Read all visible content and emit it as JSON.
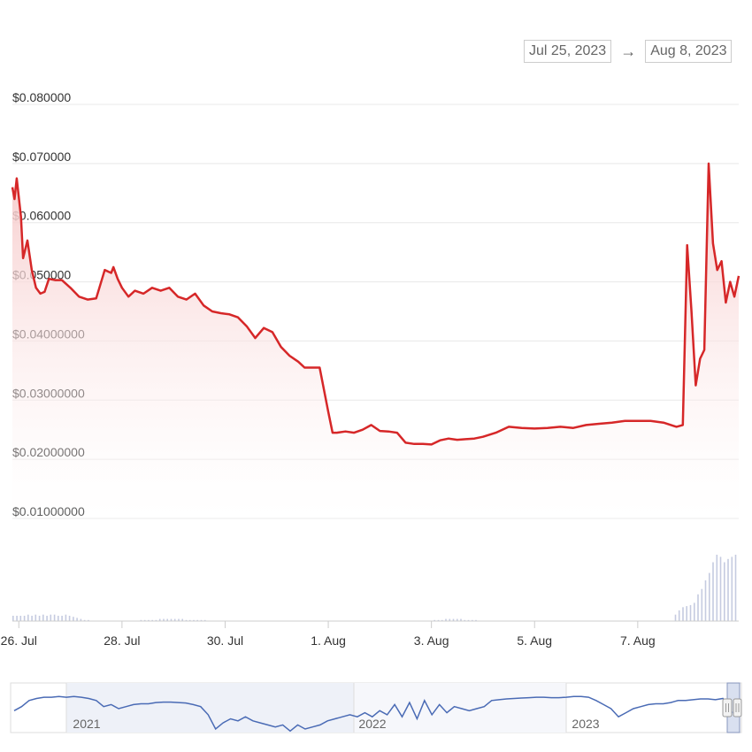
{
  "range_selector": {
    "from": "Jul 25, 2023",
    "arrow": "→",
    "to": "Aug 8, 2023"
  },
  "colors": {
    "price_line": "#d62728",
    "fill_top": "#f6c7c7",
    "navigator_line": "#4a6bb5",
    "volume": "#c5cbe0",
    "grid": "#e8e8e8"
  },
  "chart_data": {
    "type": "line",
    "title": "",
    "xlabel": "",
    "ylabel": "",
    "y_axis": {
      "min": 0.01,
      "max": 0.08,
      "tick_values": [
        0.08,
        0.07,
        0.06,
        0.05,
        0.04,
        0.03,
        0.02,
        0.01
      ],
      "tick_labels": [
        "$0.080000",
        "$0.070000",
        "$0.060000",
        "$0.050000",
        "$0.04000000",
        "$0.03000000",
        "$0.02000000",
        "$0.01000000"
      ]
    },
    "x_axis": {
      "start": "2023-07-25T21:00",
      "end": "2023-08-08T23:00",
      "tick_labels": [
        "26. Jul",
        "28. Jul",
        "30. Jul",
        "1. Aug",
        "3. Aug",
        "5. Aug",
        "7. Aug"
      ],
      "tick_dates": [
        "2023-07-26",
        "2023-07-28",
        "2023-07-30",
        "2023-08-01",
        "2023-08-03",
        "2023-08-05",
        "2023-08-07"
      ]
    },
    "grid": true,
    "series": [
      {
        "x": [
          "2023-07-25T21:00",
          "2023-07-25T22:00",
          "2023-07-25T23:00",
          "2023-07-26T01:00",
          "2023-07-26T02:00",
          "2023-07-26T04:00",
          "2023-07-26T06:00",
          "2023-07-26T08:00",
          "2023-07-26T10:00",
          "2023-07-26T12:00",
          "2023-07-26T14:00",
          "2023-07-26T17:00",
          "2023-07-26T20:00",
          "2023-07-27T00:00",
          "2023-07-27T04:00",
          "2023-07-27T08:00",
          "2023-07-27T12:00",
          "2023-07-27T16:00",
          "2023-07-27T19:00",
          "2023-07-27T20:00",
          "2023-07-27T22:00",
          "2023-07-28T00:00",
          "2023-07-28T03:00",
          "2023-07-28T06:00",
          "2023-07-28T10:00",
          "2023-07-28T14:00",
          "2023-07-28T18:00",
          "2023-07-28T22:00",
          "2023-07-29T02:00",
          "2023-07-29T06:00",
          "2023-07-29T10:00",
          "2023-07-29T14:00",
          "2023-07-29T18:00",
          "2023-07-29T22:00",
          "2023-07-30T02:00",
          "2023-07-30T06:00",
          "2023-07-30T10:00",
          "2023-07-30T14:00",
          "2023-07-30T18:00",
          "2023-07-30T22:00",
          "2023-07-31T02:00",
          "2023-07-31T06:00",
          "2023-07-31T10:00",
          "2023-07-31T13:00",
          "2023-07-31T15:00",
          "2023-07-31T20:00",
          "2023-08-01T00:00",
          "2023-08-01T02:00",
          "2023-08-01T04:00",
          "2023-08-01T08:00",
          "2023-08-01T12:00",
          "2023-08-01T16:00",
          "2023-08-01T20:00",
          "2023-08-02T00:00",
          "2023-08-02T04:00",
          "2023-08-02T08:00",
          "2023-08-02T12:00",
          "2023-08-02T16:00",
          "2023-08-02T20:00",
          "2023-08-03T00:00",
          "2023-08-03T04:00",
          "2023-08-03T08:00",
          "2023-08-03T12:00",
          "2023-08-03T16:00",
          "2023-08-03T20:00",
          "2023-08-04T00:00",
          "2023-08-04T06:00",
          "2023-08-04T12:00",
          "2023-08-04T18:00",
          "2023-08-05T00:00",
          "2023-08-05T06:00",
          "2023-08-05T12:00",
          "2023-08-05T18:00",
          "2023-08-06T00:00",
          "2023-08-06T06:00",
          "2023-08-06T12:00",
          "2023-08-06T18:00",
          "2023-08-07T00:00",
          "2023-08-07T06:00",
          "2023-08-07T12:00",
          "2023-08-07T18:00",
          "2023-08-07T21:00",
          "2023-08-07T23:00",
          "2023-08-08T01:00",
          "2023-08-08T03:00",
          "2023-08-08T05:00",
          "2023-08-08T07:00",
          "2023-08-08T09:00",
          "2023-08-08T11:00",
          "2023-08-08T13:00",
          "2023-08-08T15:00",
          "2023-08-08T17:00",
          "2023-08-08T19:00",
          "2023-08-08T21:00",
          "2023-08-08T23:00"
        ],
        "y": [
          0.066,
          0.064,
          0.0675,
          0.061,
          0.054,
          0.057,
          0.052,
          0.049,
          0.048,
          0.0483,
          0.0505,
          0.0503,
          0.0503,
          0.049,
          0.0475,
          0.047,
          0.0472,
          0.052,
          0.0515,
          0.0525,
          0.0505,
          0.049,
          0.0475,
          0.0485,
          0.048,
          0.049,
          0.0485,
          0.049,
          0.0475,
          0.047,
          0.048,
          0.046,
          0.045,
          0.0447,
          0.0445,
          0.044,
          0.0425,
          0.0405,
          0.0422,
          0.0415,
          0.039,
          0.0375,
          0.0365,
          0.0355,
          0.0355,
          0.0355,
          0.028,
          0.0245,
          0.0245,
          0.0247,
          0.0245,
          0.025,
          0.0258,
          0.0248,
          0.0247,
          0.0245,
          0.0228,
          0.0226,
          0.0226,
          0.0225,
          0.0232,
          0.0235,
          0.0233,
          0.0234,
          0.0235,
          0.0238,
          0.0245,
          0.0255,
          0.0253,
          0.0252,
          0.0253,
          0.0255,
          0.0253,
          0.0258,
          0.026,
          0.0262,
          0.0265,
          0.0265,
          0.0265,
          0.0262,
          0.0255,
          0.0258,
          0.0562,
          0.045,
          0.0325,
          0.037,
          0.0385,
          0.07,
          0.0565,
          0.052,
          0.0535,
          0.0465,
          0.05,
          0.0475,
          0.051
        ]
      }
    ],
    "volume_bars": {
      "start": "2023-07-25T21:00",
      "values": [
        0.05,
        0.05,
        0.05,
        0.05,
        0.06,
        0.05,
        0.06,
        0.05,
        0.06,
        0.05,
        0.06,
        0.06,
        0.05,
        0.05,
        0.06,
        0.05,
        0.04,
        0.03,
        0.02,
        0.01,
        0.01,
        0,
        0,
        0,
        0,
        0,
        0,
        0,
        0,
        0,
        0,
        0,
        0,
        0,
        0.01,
        0.01,
        0.01,
        0.01,
        0.01,
        0.02,
        0.02,
        0.02,
        0.02,
        0.02,
        0.02,
        0.02,
        0.01,
        0.01,
        0.01,
        0.01,
        0.01,
        0.01,
        0,
        0,
        0,
        0,
        0,
        0,
        0,
        0,
        0,
        0,
        0,
        0,
        0,
        0,
        0,
        0,
        0,
        0,
        0,
        0,
        0,
        0,
        0,
        0,
        0,
        0,
        0,
        0,
        0,
        0,
        0,
        0,
        0,
        0,
        0,
        0,
        0,
        0,
        0,
        0,
        0,
        0,
        0,
        0,
        0,
        0,
        0,
        0,
        0,
        0,
        0,
        0,
        0,
        0,
        0,
        0,
        0,
        0,
        0,
        0,
        0.01,
        0.01,
        0.01,
        0.02,
        0.02,
        0.02,
        0.02,
        0.02,
        0.01,
        0.01,
        0.01,
        0.01,
        0,
        0,
        0,
        0,
        0,
        0,
        0,
        0,
        0,
        0,
        0,
        0,
        0,
        0,
        0,
        0,
        0,
        0,
        0,
        0,
        0,
        0,
        0,
        0,
        0,
        0,
        0,
        0,
        0,
        0,
        0,
        0,
        0,
        0,
        0,
        0,
        0,
        0,
        0,
        0,
        0,
        0,
        0,
        0,
        0,
        0,
        0,
        0,
        0,
        0,
        0,
        0,
        0.06,
        0.1,
        0.13,
        0.14,
        0.15,
        0.17,
        0.25,
        0.3,
        0.38,
        0.45,
        0.55,
        0.62,
        0.6,
        0.55,
        0.58,
        0.6,
        0.62
      ]
    },
    "navigator": {
      "tick_labels": [
        "2021",
        "2022",
        "2023"
      ],
      "series_y": [
        0.45,
        0.55,
        0.7,
        0.75,
        0.78,
        0.78,
        0.8,
        0.78,
        0.8,
        0.78,
        0.75,
        0.7,
        0.55,
        0.6,
        0.5,
        0.55,
        0.6,
        0.62,
        0.62,
        0.65,
        0.66,
        0.66,
        0.65,
        0.64,
        0.6,
        0.55,
        0.35,
        0.0,
        0.15,
        0.25,
        0.2,
        0.3,
        0.2,
        0.15,
        0.1,
        0.05,
        0.1,
        -0.05,
        0.1,
        0.0,
        0.05,
        0.1,
        0.2,
        0.25,
        0.3,
        0.35,
        0.3,
        0.4,
        0.3,
        0.45,
        0.35,
        0.6,
        0.3,
        0.65,
        0.25,
        0.7,
        0.35,
        0.6,
        0.4,
        0.55,
        0.5,
        0.45,
        0.5,
        0.55,
        0.7,
        0.72,
        0.74,
        0.75,
        0.76,
        0.77,
        0.78,
        0.78,
        0.77,
        0.77,
        0.78,
        0.8,
        0.8,
        0.78,
        0.7,
        0.6,
        0.5,
        0.3,
        0.4,
        0.5,
        0.55,
        0.6,
        0.62,
        0.62,
        0.65,
        0.7,
        0.7,
        0.72,
        0.74,
        0.74,
        0.72,
        0.75,
        0.45,
        0.3
      ]
    }
  }
}
